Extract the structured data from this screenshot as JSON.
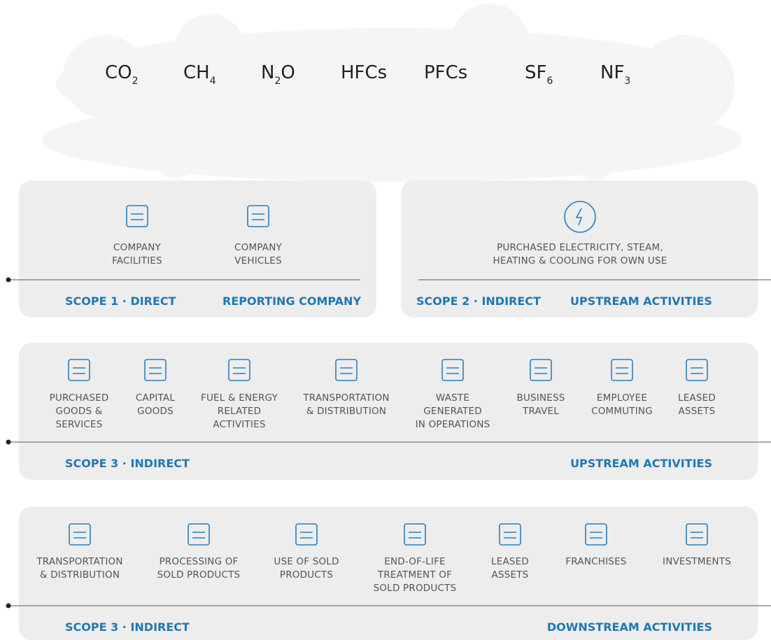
{
  "gases": [
    {
      "formula": "CO",
      "subscript": "2"
    },
    {
      "formula": "CH",
      "subscript": "4"
    },
    {
      "formula": "N",
      "subscript": "2",
      "tail": "O"
    },
    {
      "formula": "HFCs"
    },
    {
      "formula": "PFCs"
    },
    {
      "formula": "SF",
      "subscript": "6"
    },
    {
      "formula": "NF",
      "subscript": "3"
    }
  ],
  "scope1": {
    "items": [
      {
        "label": [
          "COMPANY",
          "FACILITIES"
        ]
      },
      {
        "label": [
          "COMPANY",
          "VEHICLES"
        ]
      }
    ],
    "scope": "SCOPE 1 · DIRECT",
    "activity": "REPORTING COMPANY"
  },
  "scope2": {
    "items": [
      {
        "label": [
          "PURCHASED ELECTRICITY, STEAM,",
          "HEATING & COOLING FOR OWN USE"
        ]
      }
    ],
    "scope": "SCOPE 2 · INDIRECT",
    "activity": "UPSTREAM ACTIVITIES"
  },
  "scope3_upstream": {
    "items": [
      {
        "label": [
          "PURCHASED",
          "GOODS &",
          "SERVICES"
        ]
      },
      {
        "label": [
          "CAPITAL",
          "GOODS"
        ]
      },
      {
        "label": [
          "FUEL & ENERGY",
          "RELATED",
          "ACTIVITIES"
        ]
      },
      {
        "label": [
          "TRANSPORTATION",
          "& DISTRIBUTION"
        ]
      },
      {
        "label": [
          "WASTE",
          "GENERATED",
          "IN OPERATIONS"
        ]
      },
      {
        "label": [
          "BUSINESS",
          "TRAVEL"
        ]
      },
      {
        "label": [
          "EMPLOYEE",
          "COMMUTING"
        ]
      },
      {
        "label": [
          "LEASED",
          "ASSETS"
        ]
      }
    ],
    "scope": "SCOPE 3 · INDIRECT",
    "activity": "UPSTREAM ACTIVITIES"
  },
  "scope3_downstream": {
    "items": [
      {
        "label": [
          "TRANSPORTATION",
          "& DISTRIBUTION"
        ]
      },
      {
        "label": [
          "PROCESSING OF",
          "SOLD PRODUCTS"
        ]
      },
      {
        "label": [
          "USE OF SOLD",
          "PRODUCTS"
        ]
      },
      {
        "label": [
          "END-OF-LIFE",
          "TREATMENT OF",
          "SOLD PRODUCTS"
        ]
      },
      {
        "label": [
          "LEASED",
          "ASSETS"
        ]
      },
      {
        "label": [
          "FRANCHISES"
        ]
      },
      {
        "label": [
          "INVESTMENTS"
        ]
      }
    ],
    "scope": "SCOPE 3 · INDIRECT",
    "activity": "DOWNSTREAM ACTIVITIES"
  }
}
